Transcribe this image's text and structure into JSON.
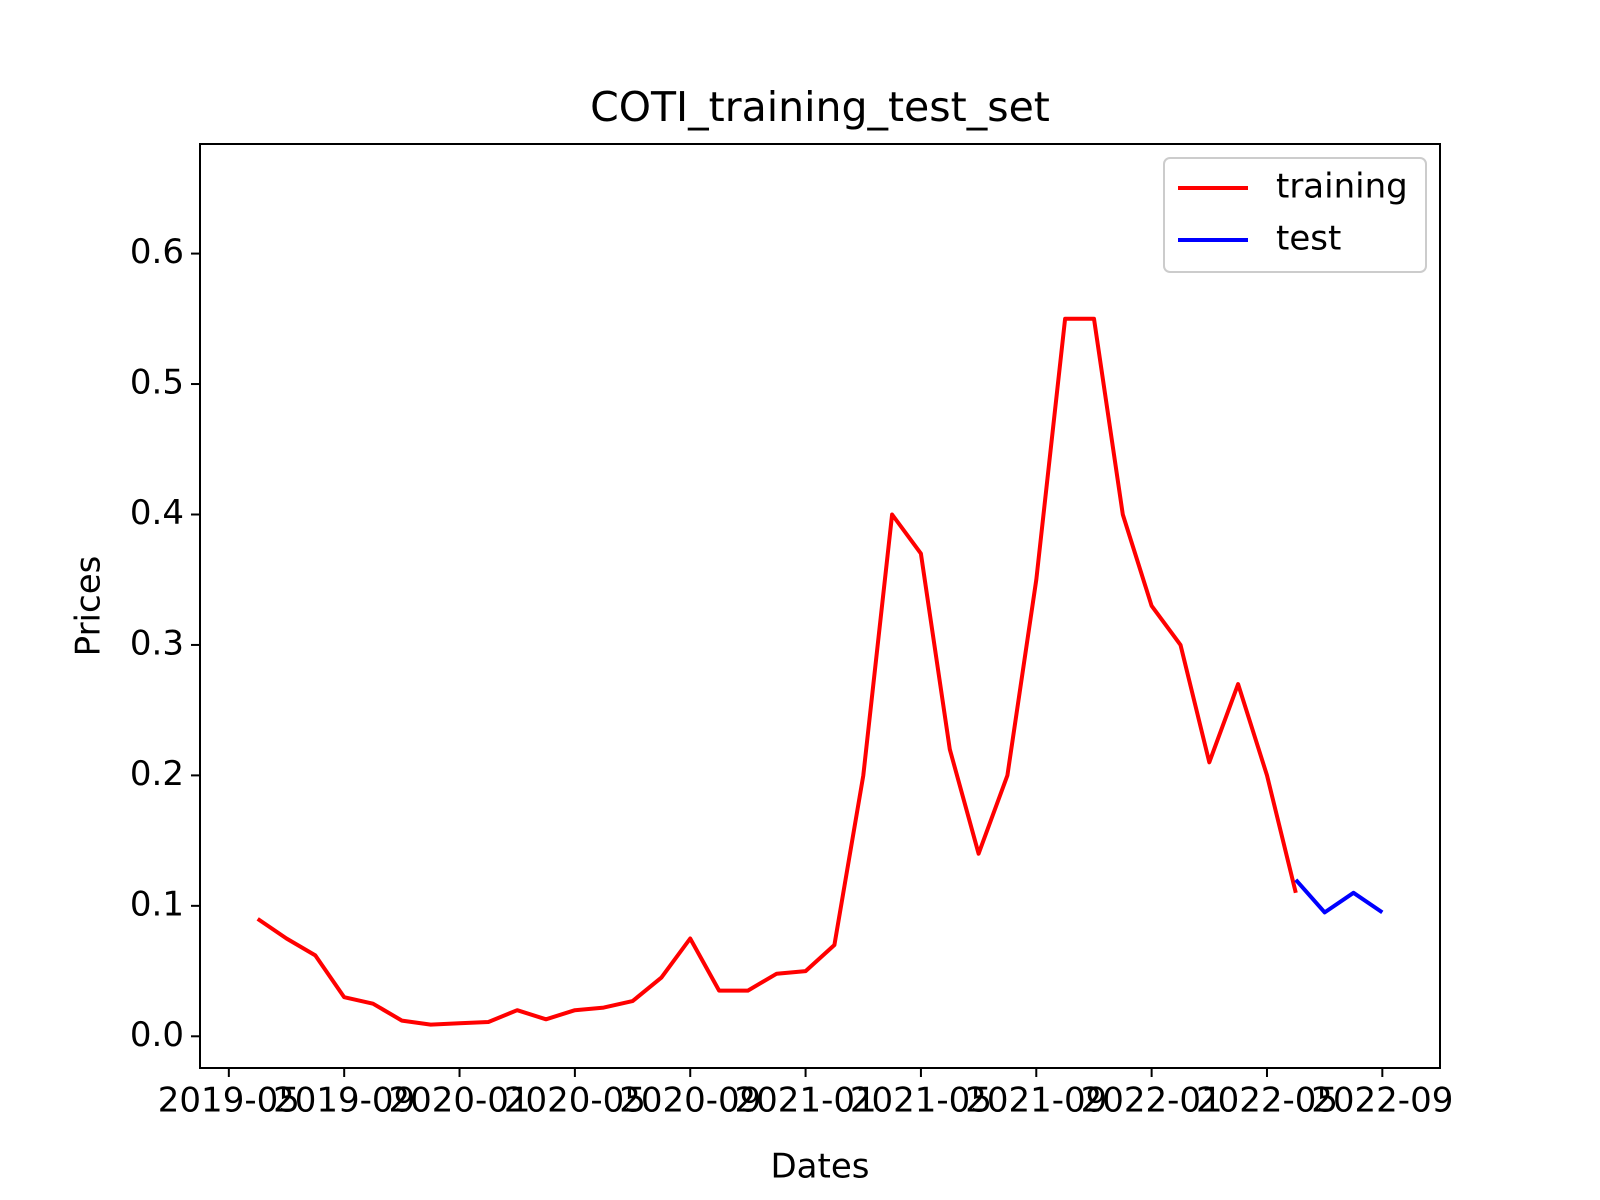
{
  "chart_data": {
    "type": "line",
    "title": "COTI_training_test_set",
    "x_label": "Dates",
    "y_label": "Prices",
    "x": [
      "2019-06",
      "2019-07",
      "2019-08",
      "2019-09",
      "2019-10",
      "2019-11",
      "2019-12",
      "2020-01",
      "2020-02",
      "2020-03",
      "2020-04",
      "2020-05",
      "2020-06",
      "2020-07",
      "2020-08",
      "2020-09",
      "2020-10",
      "2020-11",
      "2020-12",
      "2021-01",
      "2021-02",
      "2021-03",
      "2021-04",
      "2021-05",
      "2021-06",
      "2021-07",
      "2021-08",
      "2021-09",
      "2021-10",
      "2021-11",
      "2021-12",
      "2022-01",
      "2022-02",
      "2022-03",
      "2022-04",
      "2022-05",
      "2022-06",
      "2022-07",
      "2022-08",
      "2022-09"
    ],
    "series": [
      {
        "name": "training",
        "color": "#ff0000",
        "values": [
          0.09,
          0.075,
          0.062,
          0.03,
          0.025,
          0.012,
          0.009,
          0.01,
          0.011,
          0.02,
          0.013,
          0.02,
          0.022,
          0.027,
          0.045,
          0.075,
          0.035,
          0.035,
          0.048,
          0.05,
          0.07,
          0.2,
          0.4,
          0.37,
          0.22,
          0.14,
          0.2,
          0.35,
          0.55,
          0.55,
          0.4,
          0.33,
          0.3,
          0.21,
          0.27,
          0.2,
          0.11,
          null,
          null,
          null
        ]
      },
      {
        "name": "test",
        "color": "#0000ff",
        "values": [
          null,
          null,
          null,
          null,
          null,
          null,
          null,
          null,
          null,
          null,
          null,
          null,
          null,
          null,
          null,
          null,
          null,
          null,
          null,
          null,
          null,
          null,
          null,
          null,
          null,
          null,
          null,
          null,
          null,
          null,
          null,
          null,
          null,
          null,
          null,
          null,
          0.12,
          0.095,
          0.11,
          0.095
        ]
      }
    ],
    "xlim": [
      "2019-04",
      "2022-11"
    ],
    "xticks": [
      "2019-05",
      "2019-09",
      "2020-01",
      "2020-05",
      "2020-09",
      "2021-01",
      "2021-05",
      "2021-09",
      "2022-01",
      "2022-05",
      "2022-09"
    ],
    "ylim": [
      -0.0243,
      0.684
    ],
    "yticks": [
      {
        "value": 0,
        "label": "0.0"
      },
      0.1,
      0.2,
      0.3,
      0.4,
      0.5,
      0.6
    ],
    "legend": "upper right"
  }
}
